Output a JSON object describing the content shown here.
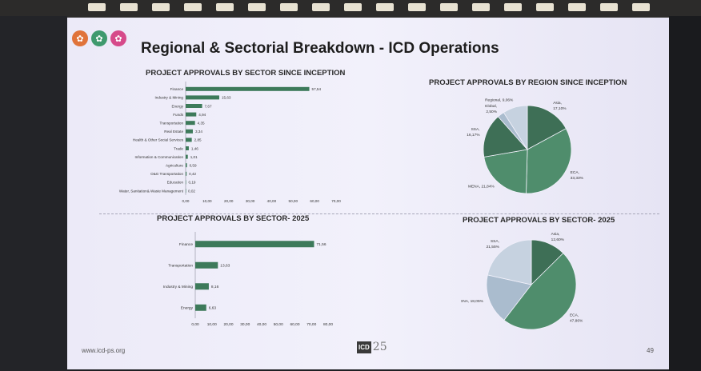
{
  "slide": {
    "title": "Regional & Sectorial Breakdown - ICD Operations",
    "footer_url": "www.icd-ps.org",
    "page_number": "49",
    "brand_text": "ICD",
    "brand_anniversary": "25"
  },
  "colors": {
    "bar": "#3d7a5a",
    "pie_dark": "#3e6f56",
    "pie_mid": "#4f8d6c",
    "pie_light": "#aabcce",
    "pie_pale": "#c6d2e0"
  },
  "chart_data": [
    {
      "id": "sector_since_inception",
      "type": "bar",
      "orientation": "horizontal",
      "title": "PROJECT APPROVALS BY SECTOR SINCE INCEPTION",
      "categories": [
        "Finance",
        "Industry & Mining",
        "Energy",
        "Funds",
        "Transportation",
        "Real Estate",
        "Health & Other Social Services",
        "Trade",
        "Information & Communication",
        "Agriculture",
        "O&G Transportation",
        "Education",
        "Water, Sanitation& Waste Management"
      ],
      "values": [
        57.54,
        15.63,
        7.67,
        4.94,
        4.35,
        3.34,
        2.85,
        1.46,
        1.01,
        0.59,
        0.42,
        0.19,
        0.02
      ],
      "value_labels": [
        "57,54",
        "15,63",
        "7,67",
        "4,94",
        "4,35",
        "3,34",
        "2,85",
        "1,46",
        "1,01",
        "0,59",
        "0,42",
        "0,19",
        "0,02"
      ],
      "xlim": [
        0,
        70
      ],
      "xticks": [
        "0,00",
        "10,00",
        "20,00",
        "30,00",
        "40,00",
        "50,00",
        "60,00",
        "70,00"
      ]
    },
    {
      "id": "region_since_inception",
      "type": "pie",
      "title": "PROJECT APPROVALS BY REGION SINCE INCEPTION",
      "slices": [
        {
          "name": "Asia",
          "label": "Asia,\n17,10%",
          "value": 17.1
        },
        {
          "name": "ECA",
          "label": "ECA,\n33,33%",
          "value": 33.33
        },
        {
          "name": "MENA",
          "label": "MENA, 21,84%",
          "value": 21.84
        },
        {
          "name": "SSA",
          "label": "SSA,\n16,17%",
          "value": 16.17
        },
        {
          "name": "Global",
          "label": "Global,\n2,50%",
          "value": 2.5
        },
        {
          "name": "Regional",
          "label": "Regional, 9,06%",
          "value": 9.06
        }
      ]
    },
    {
      "id": "sector_2025",
      "type": "bar",
      "orientation": "horizontal",
      "title": "PROJECT APPROVALS BY SECTOR- 2025",
      "categories": [
        "Finance",
        "Transportation",
        "Industry & Mining",
        "Energy"
      ],
      "values": [
        71.56,
        13.63,
        8.16,
        6.63
      ],
      "value_labels": [
        "71,56",
        "13,63",
        "8,16",
        "6,63"
      ],
      "xlim": [
        0,
        80
      ],
      "xticks": [
        "0,00",
        "10,00",
        "20,00",
        "30,00",
        "40,00",
        "50,00",
        "60,00",
        "70,00",
        "80,00"
      ]
    },
    {
      "id": "region_2025",
      "type": "pie",
      "title": "PROJECT APPROVALS BY SECTOR- 2025",
      "slices": [
        {
          "name": "Asia",
          "label": "Asia,\n12,60%",
          "value": 12.6
        },
        {
          "name": "ECA",
          "label": "ECA,\n47,86%",
          "value": 47.86
        },
        {
          "name": "MENA",
          "label": "MENA, 18,05%",
          "value": 18.05
        },
        {
          "name": "SSA",
          "label": "SSA,\n21,55%",
          "value": 21.55
        }
      ]
    }
  ]
}
